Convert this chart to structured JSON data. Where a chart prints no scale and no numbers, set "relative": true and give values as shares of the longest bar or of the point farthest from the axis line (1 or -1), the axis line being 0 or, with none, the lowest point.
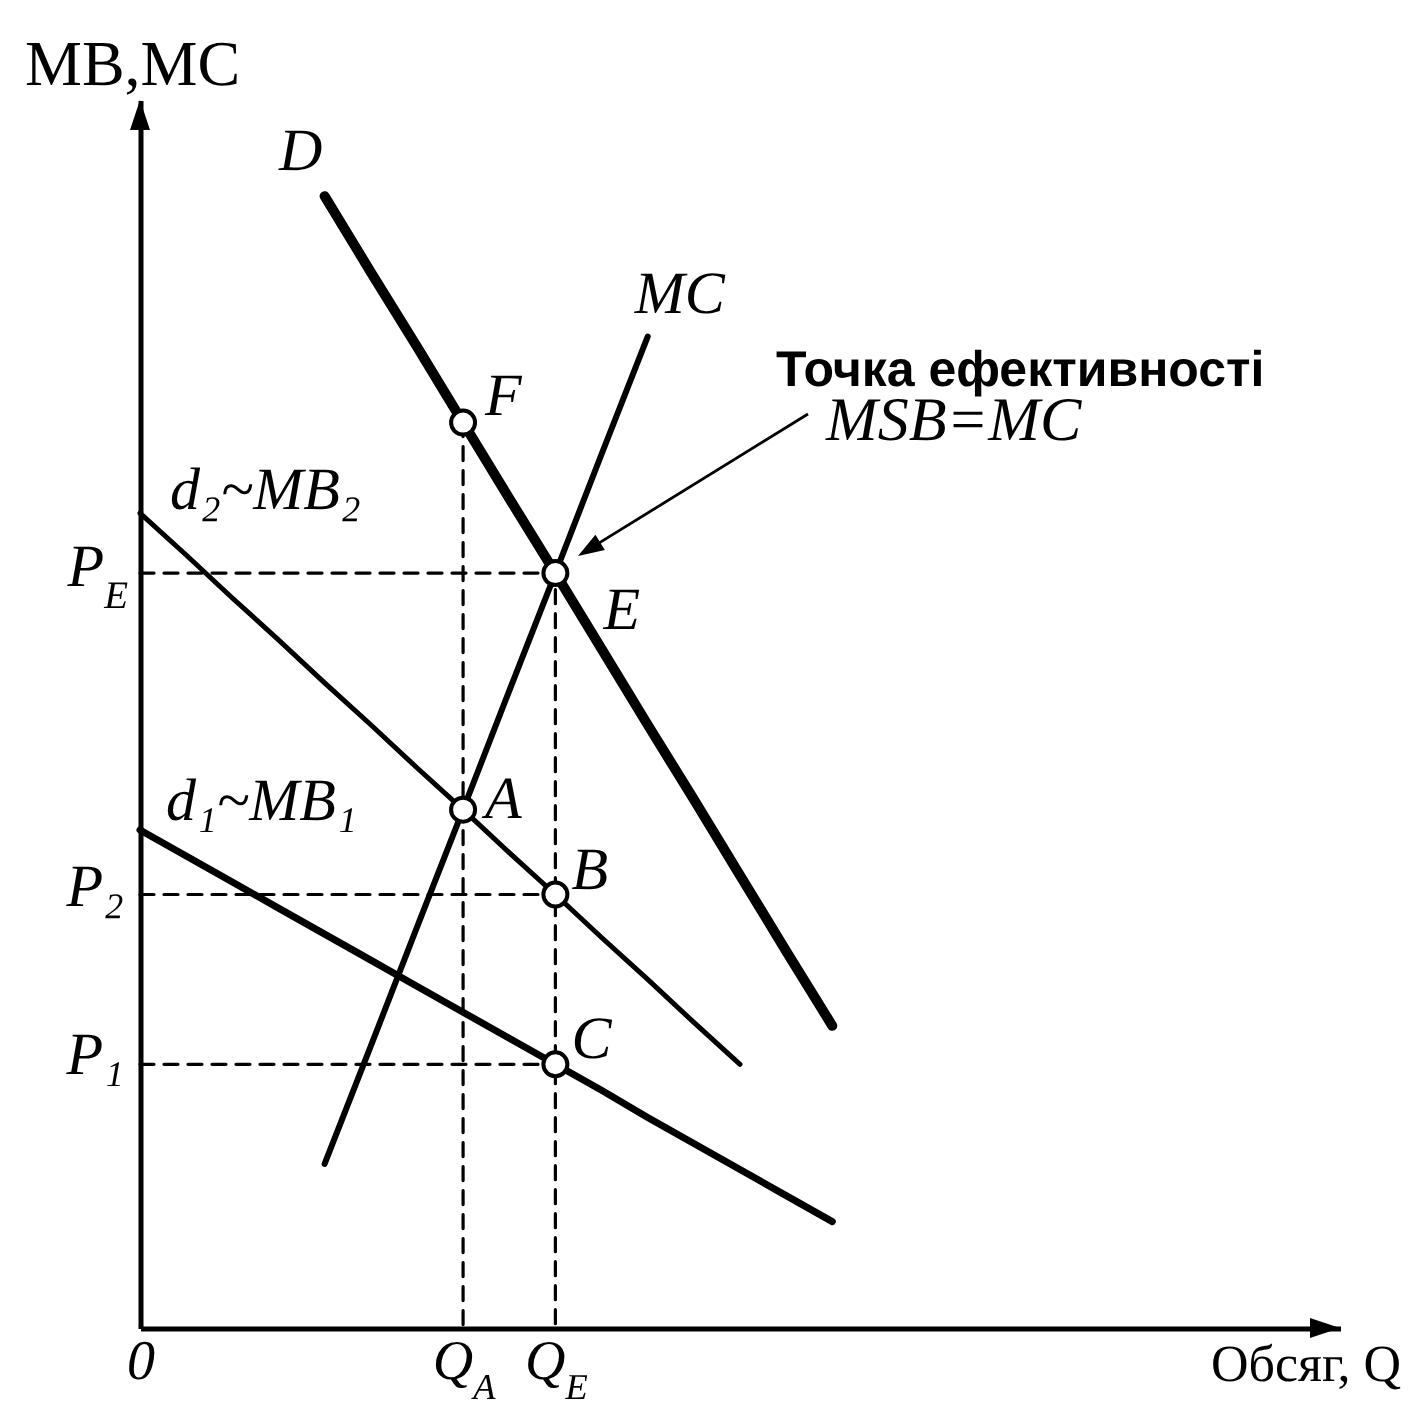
{
  "chart_data": {
    "type": "line",
    "relative": true,
    "xlabel": "Обсяг, Q",
    "ylabel": "MB,MC",
    "categories": [
      "0",
      null,
      null,
      null,
      null,
      null,
      null,
      "Q$_{A}$",
      null,
      "Q$_{E}$",
      null,
      null,
      null,
      null,
      null,
      null,
      null,
      null,
      null,
      null,
      null,
      null,
      null,
      null,
      null,
      null,
      null
    ],
    "series": [
      {
        "name": "D",
        "color": "#000000",
        "values": [
          null,
          null,
          null,
          null,
          1,
          0.933,
          0.867,
          0.8,
          0.733,
          0.667,
          0.6,
          0.533,
          0.467,
          0.4,
          0.333,
          0.267,
          null,
          null,
          null,
          null,
          null,
          null,
          null,
          null,
          null,
          null,
          null
        ]
      },
      {
        "name": "MC",
        "color": "#000000",
        "values": [
          null,
          null,
          null,
          null,
          0.145,
          0.249,
          0.354,
          0.458,
          0.563,
          0.667,
          0.772,
          0.876,
          null,
          null,
          null,
          null,
          null,
          null,
          null,
          null,
          null,
          null,
          null,
          null,
          null,
          null,
          null
        ]
      },
      {
        "name": "d₂~MB₂",
        "color": "#000000",
        "values": [
          0.72,
          0.683,
          0.645,
          0.608,
          0.57,
          0.533,
          0.495,
          0.458,
          0.42,
          0.383,
          0.345,
          0.308,
          0.27,
          0.233,
          null,
          null,
          null,
          null,
          null,
          null,
          null,
          null,
          null,
          null,
          null,
          null,
          null
        ]
      },
      {
        "name": "d₁~MB₁",
        "color": "#000000",
        "values": [
          0.44,
          0.417,
          0.394,
          0.371,
          0.348,
          0.325,
          0.302,
          0.279,
          0.256,
          0.233,
          0.21,
          0.186,
          0.163,
          0.14,
          0.117,
          0.094,
          null,
          null,
          null,
          null,
          null,
          null,
          null,
          null,
          null,
          null,
          null
        ]
      },
      {
        "color": "#000000",
        "line_style": "dashed",
        "x": [
          "0",
          "Q$_{E}$",
          "Q$_{E}$"
        ],
        "values": [
          0.667,
          0.667,
          0
        ]
      },
      {
        "color": "#000000",
        "line_style": "dashed",
        "x": [
          "Q$_{A}$",
          "Q$_{A}$"
        ],
        "values": [
          0.8,
          0
        ]
      },
      {
        "color": "#000000",
        "line_style": "dashed",
        "x": [
          "0",
          "Q$_{E}$"
        ],
        "values": [
          0.383,
          0.383
        ]
      },
      {
        "color": "#000000",
        "line_style": "dashed",
        "x": [
          "0",
          "Q$_{E}$"
        ],
        "values": [
          0.233,
          0.233
        ]
      },
      {
        "type": "scatter",
        "color": "#000000",
        "marker": "circle",
        "x": [
          "Q$_{A}$",
          "Q$_{E}$",
          "Q$_{A}$",
          "Q$_{E}$",
          "Q$_{E}$"
        ],
        "values": [
          0.8,
          0.667,
          0.458,
          0.383,
          0.233
        ]
      }
    ],
    "annotations": [
      {
        "text": "F",
        "x": "Q$_{A}$",
        "y": 0.8
      },
      {
        "text": "E",
        "x": "Q$_{E}$",
        "y": 0.667
      },
      {
        "text": "A",
        "x": "Q$_{A}$",
        "y": 0.458
      },
      {
        "text": "B",
        "x": "Q$_{E}$",
        "y": 0.383
      },
      {
        "text": "C",
        "x": "Q$_{E}$",
        "y": 0.233
      },
      "P$_{E}$",
      "P₂",
      "P₁",
      "Точка ефективності",
      "MSB=MC"
    ]
  }
}
